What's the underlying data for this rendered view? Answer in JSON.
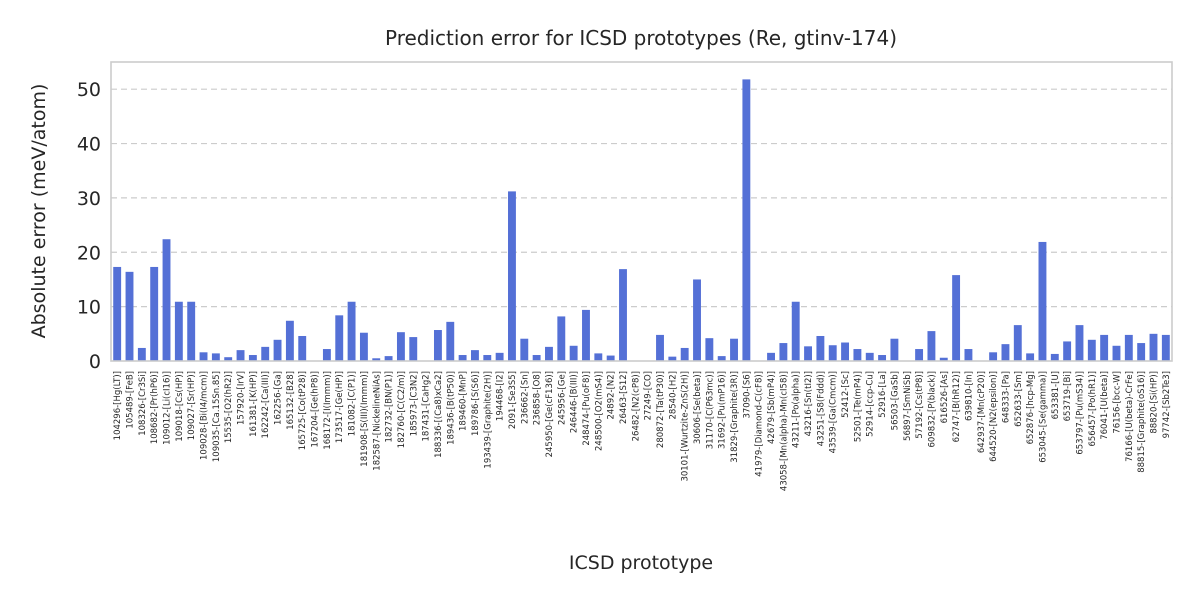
{
  "chart_data": {
    "type": "bar",
    "title": "Prediction error for ICSD prototypes (Re, gtinv-174)",
    "xlabel": "ICSD prototype",
    "ylabel": "Absolute error (meV/atom)",
    "ylim": [
      0,
      55
    ],
    "yticks": [
      0,
      10,
      20,
      30,
      40,
      50
    ],
    "grid": true,
    "categories": [
      "104296-[Hg(LT)]",
      "105489-[FeB]",
      "108326-[Cr3Si]",
      "108682-[Pr(hP6)]",
      "109012-[Li(cI16)]",
      "109018-[Cs(HP)]",
      "109027-[Sr(HP)]",
      "109028-[Bi(I4/mcm)]",
      "109035-[Ca.15Sn.85]",
      "15535-[O2(hR2)]",
      "157920-[IrV]",
      "161381-[K(HP)]",
      "162242-[Ca(III)]",
      "162256-[Ga]",
      "165132-[B28]",
      "165725-[Co(tP28)]",
      "167204-[Ge(hP8)]",
      "168172-[I(Immm)]",
      "173517-[Ge(HP)]",
      "181082-[C(P1)]",
      "181908-[S(III)(Immm)]",
      "182587-[NickelineNiAs]",
      "182732-[BN(P1)]",
      "182760-[C(C2/m)]",
      "185973-[C3N2]",
      "187431-[CaHg2]",
      "188336-[(Ca8)xCa2]",
      "189436-[B(tP50)]",
      "189460-[MnP]",
      "189786-[S(S6)]",
      "193439-[Graphite(2H)]",
      "194468-[I2]",
      "2091-[Se3S5]",
      "236662-[Sn]",
      "236858-[O8]",
      "245950-[Ge(cF136)]",
      "245956-[Ge]",
      "246446-[B(III)]",
      "248474-[Pu(oF8)]",
      "248500-[O2(mS4)]",
      "24892-[N2]",
      "26463-[S12]",
      "26482-[N2(cP8)]",
      "27249-[CO]",
      "280872-[Ta(tP30)]",
      "28540-[H2]",
      "30101-[Wurtzite-ZnS(2H)]",
      "30606-[Se(beta)]",
      "31170-[C(P63mc)]",
      "31692-[Pu(mP16)]",
      "31829-[Graphite(3R)]",
      "37090-[S6]",
      "41979-[Diamond-C(cF8)]",
      "42679-[Sb(mP4)]",
      "43058-[Mn(alpha)-Mn(cI58)]",
      "43211-[Po(alpha)]",
      "43216-[Sn(tI2)]",
      "43251-[S8(Fddd)]",
      "43539-[Ga(Cmcm)]",
      "52412-[Sc]",
      "52501-[Te(mP4)]",
      "52914-[ccp-Cu]",
      "52916-[La]",
      "56503-[GaSb]",
      "56897-[SmNiSb]",
      "57192-[Cs(tP8)]",
      "609832-[P(black)]",
      "616526-[As]",
      "62747-[B(hR12)]",
      "639810-[In]",
      "642937-[Mn(cP20)]",
      "644520-[N2(epsilon)]",
      "648333-[Pa]",
      "652633-[Sm]",
      "652876-[hcp-Mg]",
      "653045-[Se(gamma)]",
      "653381-[U]",
      "653719-[Bi]",
      "653797-[Pu(mS34)]",
      "656457-[Po(hR1)]",
      "76041-[U(beta)]",
      "76156-[bcc-W]",
      "76166-[U(beta)-CrFe]",
      "88815-[Graphite(oS16)]",
      "88820-[Si(HP)]",
      "97742-[Sb2Te3]"
    ],
    "values": [
      17.3,
      16.4,
      2.4,
      17.3,
      22.4,
      10.9,
      10.9,
      1.6,
      1.4,
      0.7,
      2.0,
      1.1,
      2.6,
      3.9,
      7.4,
      4.6,
      0.0,
      2.2,
      8.4,
      10.9,
      5.2,
      0.5,
      0.9,
      5.3,
      4.4,
      0.0,
      5.7,
      7.2,
      1.1,
      2.0,
      1.1,
      1.5,
      31.2,
      4.1,
      1.1,
      2.6,
      8.2,
      2.8,
      9.4,
      1.4,
      1.0,
      16.9,
      0.0,
      0.0,
      4.8,
      0.8,
      2.4,
      15.0,
      4.2,
      0.9,
      4.1,
      51.8,
      0.0,
      1.5,
      3.3,
      10.9,
      2.7,
      4.6,
      2.9,
      3.4,
      2.2,
      1.5,
      1.1,
      4.1,
      0.0,
      2.2,
      5.5,
      0.6,
      15.8,
      2.2,
      0.0,
      1.6,
      3.1,
      6.6,
      1.4,
      21.9,
      1.3,
      3.6,
      6.6,
      3.9,
      4.8,
      2.8,
      4.8,
      3.3,
      5.0,
      4.8
    ]
  }
}
